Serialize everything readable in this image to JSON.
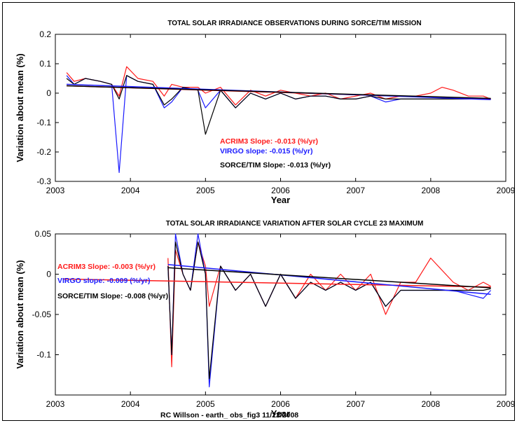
{
  "colors": {
    "acrim": "#ff1a1a",
    "virgo": "#1a1aff",
    "sorce": "#000000"
  },
  "footer": "RC Willson - earth_ obs_fig3  11/22/2008",
  "chart_data": [
    {
      "type": "line",
      "title": "TOTAL SOLAR IRRADIANCE OBSERVATIONS DURING SORCE/TIM MISSION",
      "xlabel": "Year",
      "ylabel": "Variation about mean (%)",
      "xlim": [
        2003,
        2009
      ],
      "ylim": [
        -0.3,
        0.2
      ],
      "xticks": [
        2003,
        2004,
        2005,
        2006,
        2007,
        2008,
        2009
      ],
      "yticks": [
        -0.3,
        -0.2,
        -0.1,
        0,
        0.1,
        0.2
      ],
      "ytick_labels": [
        "-0.3",
        "-0.2",
        "-0.1",
        "0",
        "0.1",
        "0.2"
      ],
      "annotations": [
        {
          "text": "ACRIM3 Slope: -0.013 (%/yr)",
          "series": "acrim"
        },
        {
          "text": "VIRGO slope: -0.015 (%/yr)",
          "series": "virgo"
        },
        {
          "text": "SORCE/TIM Slope: -0.013 (%/yr)",
          "series": "sorce"
        }
      ],
      "series": [
        {
          "key": "acrim",
          "x": [
            2003.15,
            2003.25,
            2003.4,
            2003.6,
            2003.75,
            2003.85,
            2003.95,
            2004.1,
            2004.3,
            2004.45,
            2004.55,
            2004.7,
            2004.9,
            2005.0,
            2005.2,
            2005.4,
            2005.6,
            2005.8,
            2006.0,
            2006.2,
            2006.4,
            2006.6,
            2006.8,
            2007.0,
            2007.2,
            2007.4,
            2007.6,
            2007.8,
            2008.0,
            2008.15,
            2008.3,
            2008.5,
            2008.7,
            2008.8
          ],
          "y": [
            0.07,
            0.04,
            0.05,
            0.04,
            0.03,
            -0.01,
            0.09,
            0.05,
            0.04,
            -0.01,
            0.03,
            0.02,
            0.02,
            0.0,
            0.02,
            -0.04,
            0.01,
            -0.01,
            0.01,
            0.0,
            -0.01,
            0.0,
            -0.02,
            -0.01,
            0.0,
            -0.02,
            -0.01,
            -0.01,
            0.0,
            0.02,
            0.01,
            -0.01,
            -0.01,
            -0.02
          ]
        },
        {
          "key": "virgo",
          "x": [
            2003.15,
            2003.25,
            2003.4,
            2003.6,
            2003.75,
            2003.85,
            2003.95,
            2004.1,
            2004.3,
            2004.45,
            2004.55,
            2004.7,
            2004.9,
            2005.0,
            2005.2,
            2005.4,
            2005.6,
            2005.8,
            2006.0,
            2006.2,
            2006.4,
            2006.6,
            2006.8,
            2007.0,
            2007.2,
            2007.4,
            2007.6,
            2007.8,
            2008.0,
            2008.15,
            2008.3,
            2008.5,
            2008.7,
            2008.8
          ],
          "y": [
            0.06,
            0.03,
            0.05,
            0.04,
            0.03,
            -0.27,
            0.06,
            0.04,
            0.03,
            -0.05,
            -0.03,
            0.02,
            0.01,
            -0.05,
            0.01,
            -0.05,
            0.0,
            -0.02,
            0.0,
            -0.02,
            -0.01,
            -0.01,
            -0.02,
            -0.02,
            -0.01,
            -0.03,
            -0.02,
            -0.02,
            -0.02,
            -0.02,
            -0.02,
            -0.02,
            -0.02,
            -0.02
          ]
        },
        {
          "key": "sorce",
          "x": [
            2003.15,
            2003.25,
            2003.4,
            2003.6,
            2003.75,
            2003.85,
            2003.95,
            2004.1,
            2004.3,
            2004.45,
            2004.55,
            2004.7,
            2004.9,
            2005.0,
            2005.2,
            2005.4,
            2005.6,
            2005.8,
            2006.0,
            2006.2,
            2006.4,
            2006.6,
            2006.8,
            2007.0,
            2007.2,
            2007.4,
            2007.6,
            2007.8,
            2008.0,
            2008.15,
            2008.3,
            2008.5,
            2008.7,
            2008.8
          ],
          "y": [
            0.05,
            0.03,
            0.05,
            0.04,
            0.03,
            -0.02,
            0.06,
            0.04,
            0.03,
            -0.04,
            -0.02,
            0.02,
            0.01,
            -0.14,
            0.01,
            -0.05,
            0.0,
            -0.02,
            0.0,
            -0.02,
            -0.01,
            -0.01,
            -0.02,
            -0.02,
            -0.01,
            -0.02,
            -0.02,
            -0.02,
            -0.02,
            -0.02,
            -0.02,
            -0.02,
            -0.02,
            -0.02
          ]
        }
      ],
      "trend_lines": [
        {
          "key": "acrim",
          "x": [
            2003.15,
            2008.8
          ],
          "y": [
            0.025,
            -0.02
          ]
        },
        {
          "key": "virgo",
          "x": [
            2003.15,
            2008.8
          ],
          "y": [
            0.03,
            -0.022
          ]
        },
        {
          "key": "sorce",
          "x": [
            2003.15,
            2008.8
          ],
          "y": [
            0.025,
            -0.018
          ]
        }
      ]
    },
    {
      "type": "line",
      "title": "TOTAL SOLAR IRRADIANCE VARIATION AFTER SOLAR CYCLE 23 MAXIMUM",
      "xlabel": "Year",
      "ylabel": "Variation about mean (%)",
      "xlim": [
        2003,
        2009
      ],
      "ylim": [
        -0.15,
        0.05
      ],
      "xticks": [
        2003,
        2004,
        2005,
        2006,
        2007,
        2008,
        2009
      ],
      "yticks": [
        -0.1,
        -0.05,
        0,
        0.05
      ],
      "ytick_labels": [
        "-0.1",
        "-0.05",
        "0",
        "0.05"
      ],
      "annotations": [
        {
          "text": "ACRIM3 Slope: -0.003 (%/yr)",
          "series": "acrim"
        },
        {
          "text": "VIRGO slope: -0.009 (%/yr)",
          "series": "virgo"
        },
        {
          "text": "SORCE/TIM Slope: -0.008 (%/yr)",
          "series": "sorce"
        }
      ],
      "series": [
        {
          "key": "acrim",
          "x": [
            2004.5,
            2004.55,
            2004.6,
            2004.7,
            2004.8,
            2004.9,
            2005.0,
            2005.05,
            2005.2,
            2005.4,
            2005.6,
            2005.8,
            2006.0,
            2006.2,
            2006.4,
            2006.6,
            2006.8,
            2007.0,
            2007.2,
            2007.4,
            2007.6,
            2007.8,
            2008.0,
            2008.1,
            2008.3,
            2008.5,
            2008.7,
            2008.8
          ],
          "y": [
            0.02,
            -0.115,
            0.03,
            0.0,
            -0.02,
            0.04,
            0.01,
            -0.04,
            0.01,
            -0.02,
            0.0,
            -0.04,
            0.0,
            -0.03,
            0.0,
            -0.02,
            0.0,
            -0.02,
            0.0,
            -0.05,
            -0.01,
            -0.01,
            0.02,
            0.01,
            -0.01,
            -0.02,
            -0.01,
            -0.015
          ]
        },
        {
          "key": "virgo",
          "x": [
            2004.5,
            2004.55,
            2004.6,
            2004.7,
            2004.8,
            2004.9,
            2005.0,
            2005.05,
            2005.2,
            2005.4,
            2005.6,
            2005.8,
            2006.0,
            2006.2,
            2006.4,
            2006.6,
            2006.8,
            2007.0,
            2007.2,
            2007.4,
            2007.6,
            2007.8,
            2008.0,
            2008.1,
            2008.3,
            2008.5,
            2008.7,
            2008.8
          ],
          "y": [
            0.01,
            -0.1,
            0.05,
            0.0,
            -0.02,
            0.05,
            0.0,
            -0.14,
            0.01,
            -0.02,
            0.0,
            -0.04,
            0.0,
            -0.03,
            -0.01,
            -0.02,
            -0.01,
            -0.02,
            -0.01,
            -0.04,
            -0.02,
            -0.02,
            -0.02,
            -0.02,
            -0.02,
            -0.025,
            -0.03,
            -0.02
          ]
        },
        {
          "key": "sorce",
          "x": [
            2004.5,
            2004.55,
            2004.6,
            2004.7,
            2004.8,
            2004.9,
            2005.0,
            2005.05,
            2005.2,
            2005.4,
            2005.6,
            2005.8,
            2006.0,
            2006.2,
            2006.4,
            2006.6,
            2006.8,
            2007.0,
            2007.2,
            2007.4,
            2007.6,
            2007.8,
            2008.0,
            2008.1,
            2008.3,
            2008.5,
            2008.7,
            2008.8
          ],
          "y": [
            0.01,
            -0.1,
            0.04,
            0.0,
            -0.02,
            0.04,
            0.0,
            -0.13,
            0.01,
            -0.02,
            0.0,
            -0.04,
            0.0,
            -0.03,
            -0.01,
            -0.02,
            -0.01,
            -0.02,
            -0.01,
            -0.04,
            -0.02,
            -0.02,
            -0.02,
            -0.02,
            -0.02,
            -0.02,
            -0.02,
            -0.018
          ]
        }
      ],
      "trend_lines": [
        {
          "key": "acrim",
          "x": [
            2003.1,
            2008.8
          ],
          "y": [
            -0.006,
            -0.016
          ]
        },
        {
          "key": "virgo",
          "x": [
            2004.5,
            2008.8
          ],
          "y": [
            0.012,
            -0.025
          ]
        },
        {
          "key": "sorce",
          "x": [
            2004.5,
            2008.8
          ],
          "y": [
            0.008,
            -0.017
          ]
        }
      ]
    }
  ]
}
